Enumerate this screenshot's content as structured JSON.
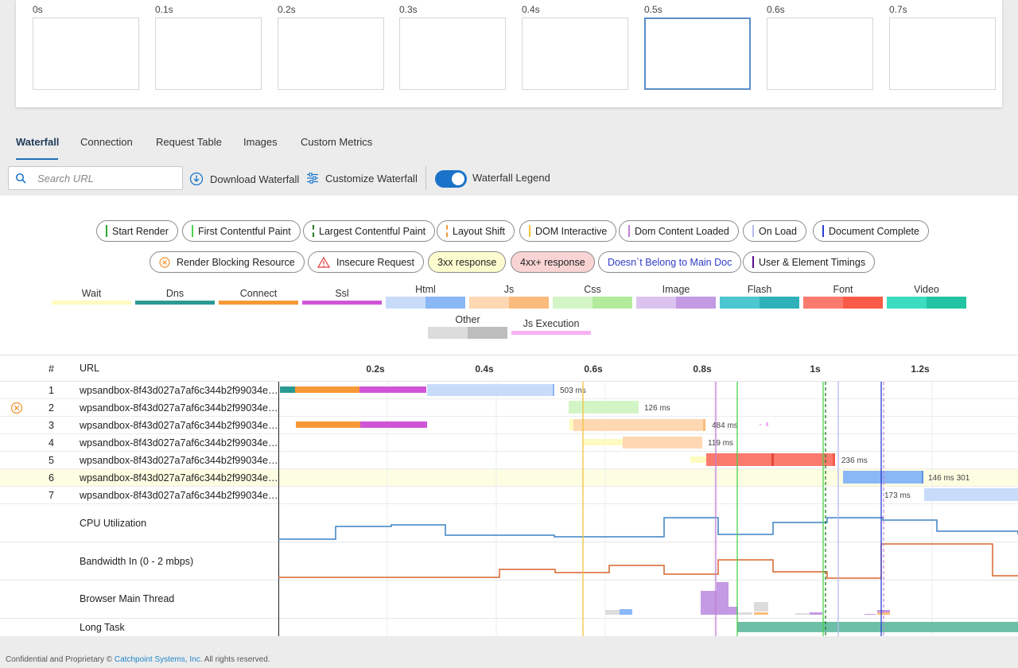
{
  "filmstrip": {
    "frames": [
      "0s",
      "0.1s",
      "0.2s",
      "0.3s",
      "0.4s",
      "0.5s",
      "0.6s",
      "0.7s"
    ],
    "selected_index": 5
  },
  "tabs": [
    "Waterfall",
    "Connection",
    "Request Table",
    "Images",
    "Custom Metrics"
  ],
  "toolbar": {
    "search_placeholder": "Search URL",
    "download_label": "Download Waterfall",
    "customize_label": "Customize Waterfall",
    "legend_label": "Waterfall Legend",
    "legend_on": true
  },
  "event_legend": [
    {
      "label": "Start Render",
      "color": "#2ea82e",
      "style": "solid"
    },
    {
      "label": "First Contentful Paint",
      "color": "#4bd14b",
      "style": "solid"
    },
    {
      "label": "Largest Contentful Paint",
      "color": "#1e7a1e",
      "style": "dashed"
    },
    {
      "label": "Layout Shift",
      "color": "#f39a3a",
      "style": "dashed"
    },
    {
      "label": "DOM Interactive",
      "color": "#f2c23a",
      "style": "solid"
    },
    {
      "label": "Dom Content Loaded",
      "color": "#c37cd6",
      "style": "solid"
    },
    {
      "label": "On Load",
      "color": "#b6b8f2",
      "style": "solid"
    },
    {
      "label": "Document Complete",
      "color": "#2a3fd1",
      "style": "solid"
    }
  ],
  "status_legend": {
    "render_blocking": "Render Blocking Resource",
    "insecure": "Insecure Request",
    "r3xx": "3xx response",
    "r4xx": "4xx+ response",
    "not_main_doc": "Doesn`t Belong to Main Doc",
    "user_timings": "User & Element Timings"
  },
  "request_legend": [
    {
      "label": "Wait",
      "c1": "#fdfbbf",
      "c2": "#fdfbbf"
    },
    {
      "label": "Dns",
      "c1": "#2b9a93",
      "c2": "#2b9a93"
    },
    {
      "label": "Connect",
      "c1": "#f79838",
      "c2": "#f79838"
    },
    {
      "label": "Ssl",
      "c1": "#cf55d6",
      "c2": "#cf55d6"
    },
    {
      "label": "Html",
      "c1": "#c8dcfa",
      "c2": "#8ab7f5"
    },
    {
      "label": "Js",
      "c1": "#fdd8b2",
      "c2": "#fbbb7c"
    },
    {
      "label": "Css",
      "c1": "#d3f5c6",
      "c2": "#b2eb9b"
    },
    {
      "label": "Image",
      "c1": "#dcc3ef",
      "c2": "#c39ae3"
    },
    {
      "label": "Flash",
      "c1": "#4cc6cf",
      "c2": "#2eb1b8"
    },
    {
      "label": "Font",
      "c1": "#fb7a6e",
      "c2": "#fa5a48"
    },
    {
      "label": "Video",
      "c1": "#3ddcc0",
      "c2": "#22c4a3"
    },
    {
      "label": "Other",
      "c1": "#dcdcdc",
      "c2": "#bdbdbd"
    },
    {
      "label": "Js Execution",
      "c1": "#f7b2f2",
      "c2": "#f7b2f2"
    }
  ],
  "table": {
    "col_num": "#",
    "col_url": "URL",
    "ticks": [
      "0.2s",
      "0.4s",
      "0.6s",
      "0.8s",
      "1s",
      "1.2s"
    ]
  },
  "requests": [
    {
      "num": "1",
      "url": "wpsandbox-8f43d027a7af6c344b2f99034ee…",
      "label": "503 ms"
    },
    {
      "num": "2",
      "url": "wpsandbox-8f43d027a7af6c344b2f99034ee…",
      "label": "126 ms"
    },
    {
      "num": "3",
      "url": "wpsandbox-8f43d027a7af6c344b2f99034ee…",
      "label": "484 ms"
    },
    {
      "num": "4",
      "url": "wpsandbox-8f43d027a7af6c344b2f99034ee…",
      "label": "119 ms"
    },
    {
      "num": "5",
      "url": "wpsandbox-8f43d027a7af6c344b2f99034ee…",
      "label": "236 ms"
    },
    {
      "num": "6",
      "url": "wpsandbox-8f43d027a7af6c344b2f99034ee…",
      "label": "146 ms 301"
    },
    {
      "num": "7",
      "url": "wpsandbox-8f43d027a7af6c344b2f99034ee…",
      "label": "173 ms"
    }
  ],
  "metrics": {
    "cpu": "CPU Utilization",
    "bandwidth": "Bandwidth In (0 - 2 mbps)",
    "main_thread": "Browser Main Thread",
    "long_task": "Long Task"
  },
  "footer": {
    "prefix": "Confidential and Proprietary © ",
    "company": "Catchpoint Systems, Inc.",
    "suffix": " All rights reserved."
  }
}
